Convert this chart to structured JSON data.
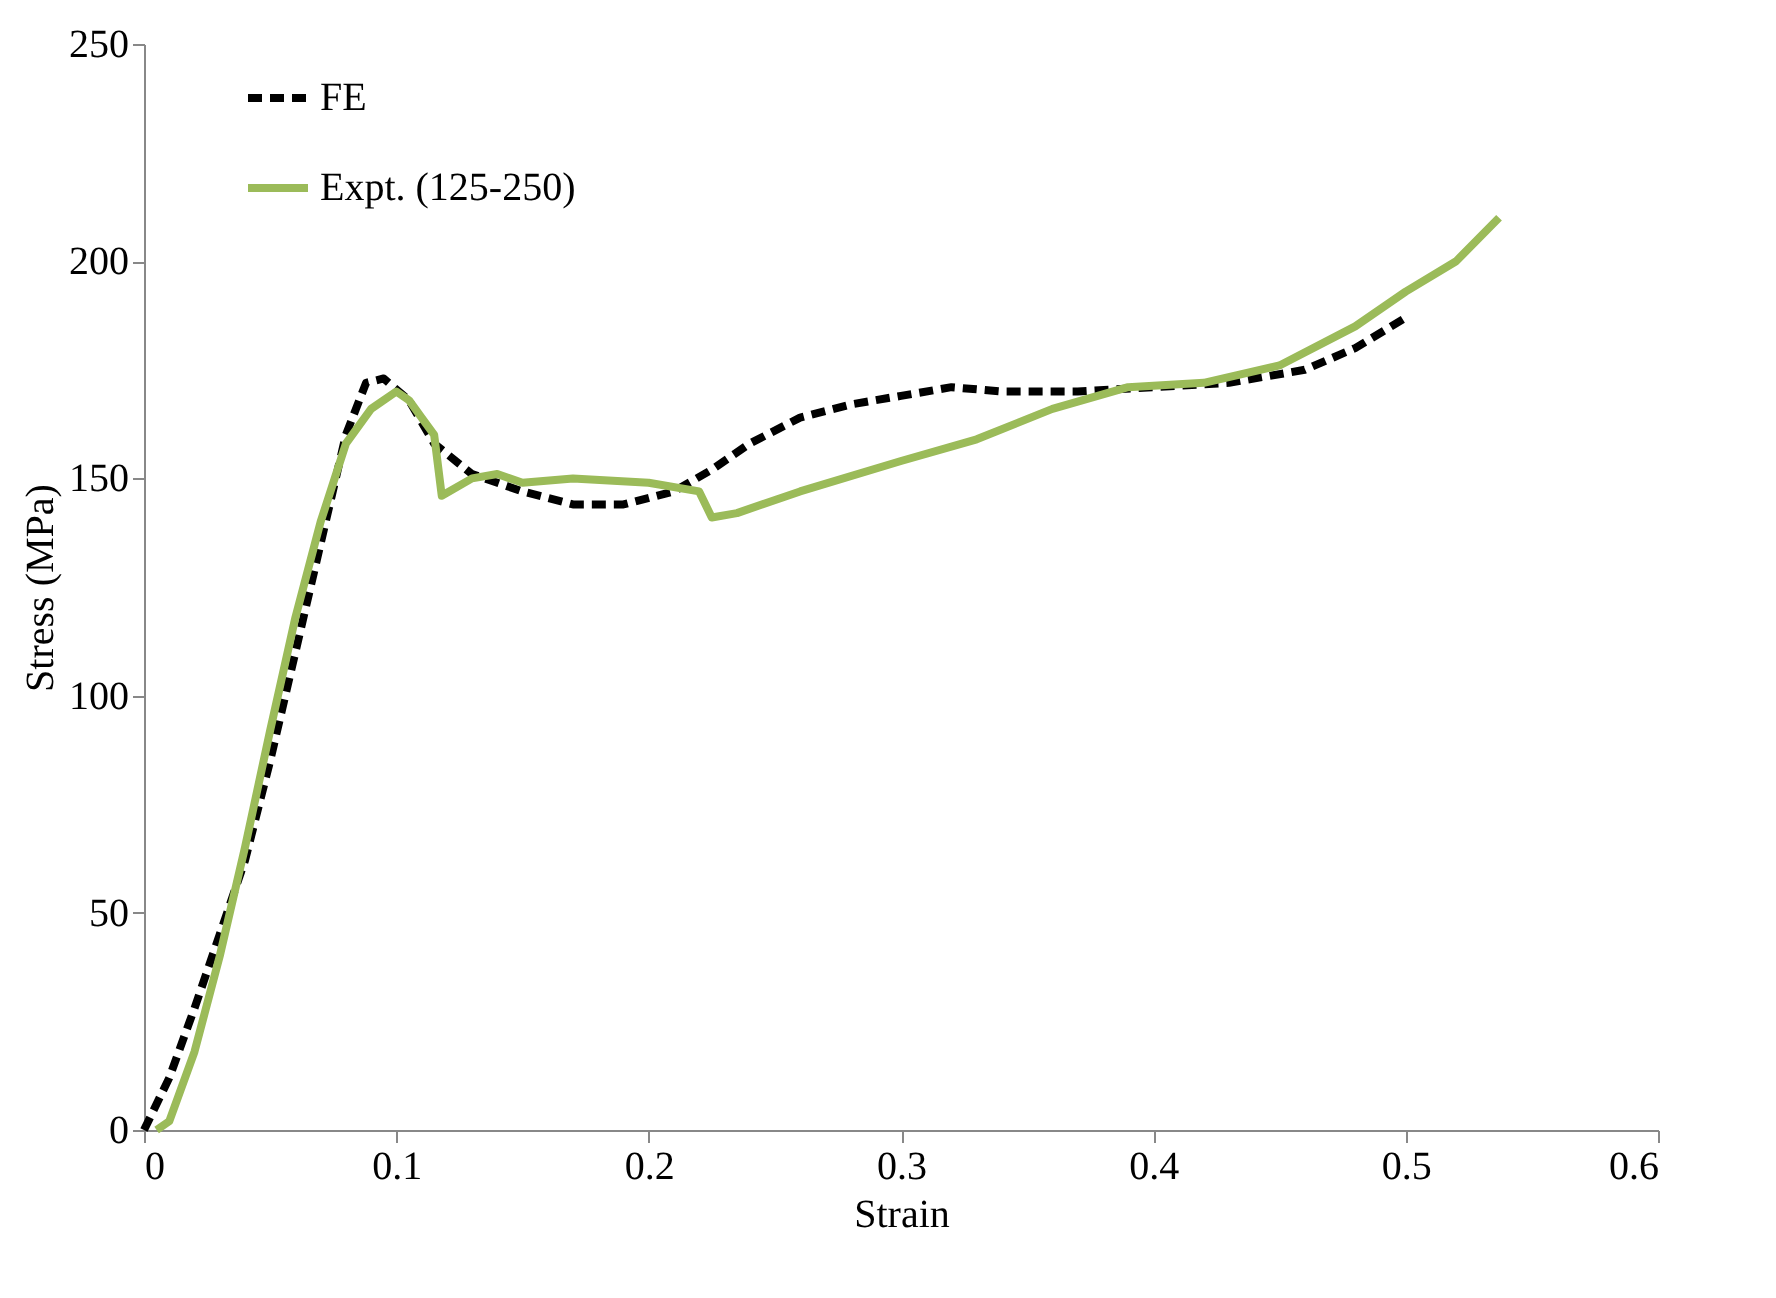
{
  "chart_data": {
    "type": "line",
    "xlabel": "Strain",
    "ylabel": "Stress (MPa)",
    "xlim": [
      0,
      0.6
    ],
    "xticks": [
      0,
      0.1,
      0.2,
      0.3,
      0.4,
      0.5,
      0.6
    ],
    "ylim": [
      0,
      250
    ],
    "yticks": [
      0,
      50,
      100,
      150,
      200,
      250
    ],
    "grid": false,
    "legend": "top left",
    "marker": "none",
    "series": [
      {
        "name": "FE",
        "color": "#000000",
        "line_style": "dashed",
        "x": [
          0,
          0.01,
          0.02,
          0.03,
          0.04,
          0.05,
          0.06,
          0.07,
          0.08,
          0.088,
          0.095,
          0.105,
          0.115,
          0.13,
          0.15,
          0.17,
          0.19,
          0.21,
          0.225,
          0.24,
          0.26,
          0.28,
          0.3,
          0.32,
          0.34,
          0.37,
          0.4,
          0.43,
          0.46,
          0.48,
          0.5
        ],
        "values": [
          0,
          12,
          28,
          45,
          62,
          85,
          110,
          135,
          160,
          172,
          173,
          168,
          158,
          151,
          147,
          144,
          144,
          147,
          152,
          158,
          164,
          167,
          169,
          171,
          170,
          170,
          171,
          172,
          175,
          180,
          187
        ]
      },
      {
        "name": "Expt. (125-250)",
        "color": "#9bbb59",
        "line_style": "solid",
        "x": [
          0.005,
          0.01,
          0.02,
          0.03,
          0.04,
          0.05,
          0.06,
          0.07,
          0.08,
          0.09,
          0.1,
          0.105,
          0.11,
          0.115,
          0.118,
          0.13,
          0.14,
          0.15,
          0.17,
          0.2,
          0.22,
          0.225,
          0.235,
          0.26,
          0.3,
          0.33,
          0.36,
          0.39,
          0.42,
          0.45,
          0.48,
          0.5,
          0.52,
          0.537
        ],
        "values": [
          0,
          2,
          18,
          40,
          65,
          92,
          118,
          140,
          158,
          166,
          170,
          168,
          164,
          160,
          146,
          150,
          151,
          149,
          150,
          149,
          147,
          141,
          142,
          147,
          154,
          159,
          166,
          171,
          172,
          176,
          185,
          193,
          200,
          210
        ]
      }
    ]
  }
}
